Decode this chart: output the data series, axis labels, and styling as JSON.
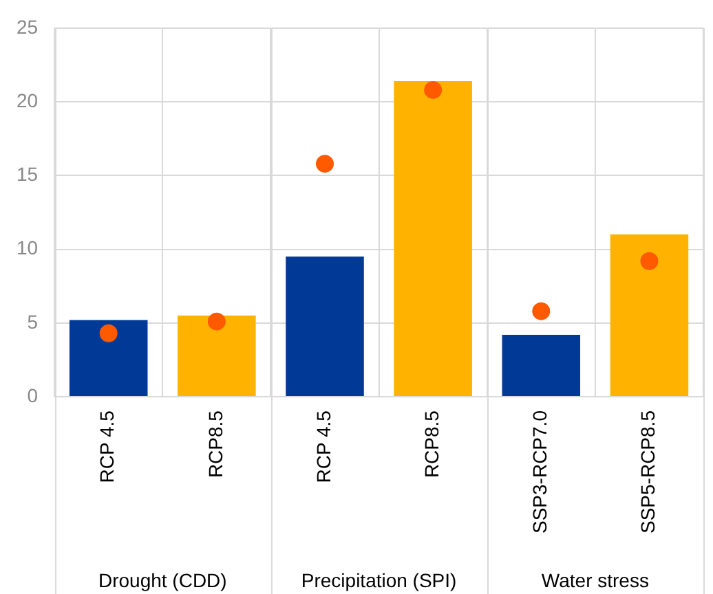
{
  "chart_data": {
    "type": "bar",
    "categories": [
      "RCP 4.5",
      "RCP8.5",
      "RCP 4.5",
      "RCP8.5",
      "SSP3-RCP7.0",
      "SSP5-RCP8.5"
    ],
    "series": [
      {
        "colors": [
          "#003a96",
          "#ffb300",
          "#003a96",
          "#ffb300",
          "#003a96",
          "#ffb300"
        ],
        "values": [
          5.2,
          5.5,
          9.5,
          21.4,
          4.2,
          11.0
        ]
      },
      {
        "type": "scatter",
        "color": "#ff5a00",
        "values": [
          4.3,
          5.1,
          15.8,
          20.8,
          5.8,
          9.2
        ]
      }
    ],
    "annotations": [
      "Drought (CDD)",
      "Precipitation (SPI)",
      "Water stress"
    ],
    "ylim": [
      0,
      25
    ],
    "yticks": [
      0,
      5,
      10,
      15,
      20,
      25
    ],
    "grid": true,
    "legend": false,
    "marker": "circle"
  }
}
